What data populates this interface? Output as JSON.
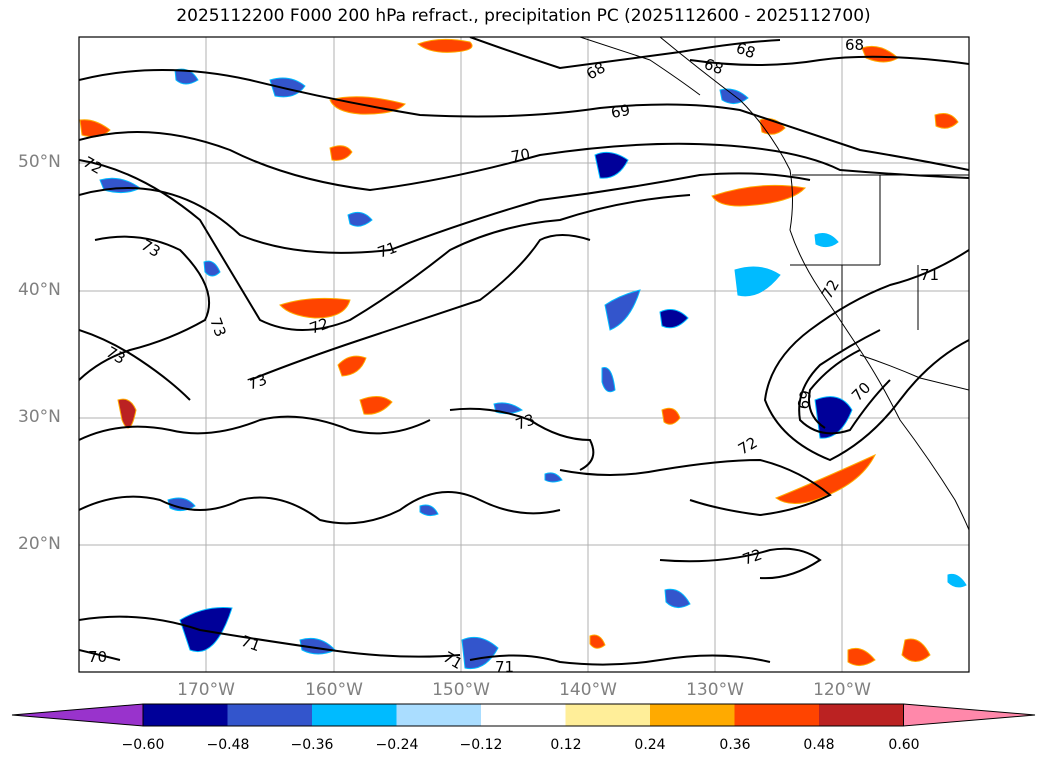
{
  "title": "2025112200 F000 200 hPa refract., precipitation PC (2025112600 - 2025112700)",
  "lat_labels": [
    "50°N",
    "40°N",
    "30°N",
    "20°N"
  ],
  "lon_labels": [
    "170°W",
    "160°W",
    "150°W",
    "140°W",
    "130°W",
    "120°W"
  ],
  "contour_labels": [
    "68",
    "68",
    "68",
    "68",
    "69",
    "70",
    "72",
    "73",
    "73",
    "73",
    "72",
    "71",
    "73",
    "73",
    "72",
    "72",
    "71",
    "70",
    "69",
    "72",
    "71",
    "71",
    "71",
    "70"
  ],
  "colorbar": {
    "ticks": [
      "−0.60",
      "−0.48",
      "−0.36",
      "−0.24",
      "−0.12",
      "0.12",
      "0.24",
      "0.36",
      "0.48",
      "0.60"
    ],
    "colors": [
      "#9933cc",
      "#000099",
      "#3355cc",
      "#00bbff",
      "#aaddff",
      "#ffffff",
      "#ffee99",
      "#ffaa00",
      "#ff4400",
      "#bb2222",
      "#ff88aa"
    ]
  }
}
